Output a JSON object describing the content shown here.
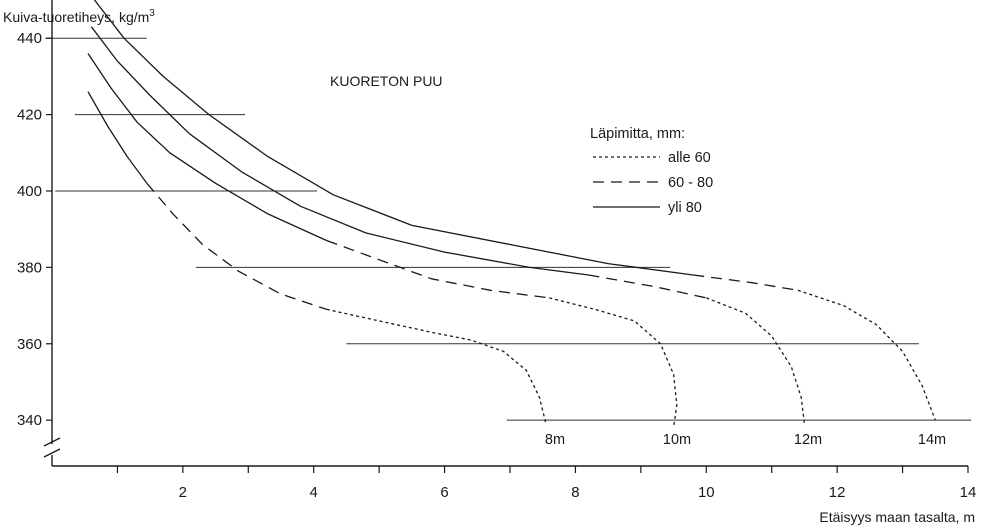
{
  "chart_data": {
    "type": "line",
    "title": "KUORETON PUU",
    "ylabel": "Kuiva-tuoretiheys, kg/m",
    "ylabel_sup": "3",
    "xlabel": "Etäisyys maan tasalta, m",
    "xlim": [
      0,
      14
    ],
    "ylim": [
      328,
      450
    ],
    "y_axis_break": true,
    "grid": false,
    "x_ticks": [
      2,
      4,
      6,
      8,
      10,
      12,
      14
    ],
    "y_ticks": [
      340,
      360,
      380,
      400,
      420,
      440
    ],
    "x_tick_labels": [
      "2",
      "4",
      "6",
      "8",
      "10",
      "12",
      "14"
    ],
    "y_tick_labels": [
      "340",
      "360",
      "380",
      "400",
      "420",
      "440"
    ],
    "legend": {
      "title": "Läpimitta, mm:",
      "placement": "right",
      "entries": [
        {
          "label": "alle 60",
          "style": "dotted"
        },
        {
          "label": "60 - 80",
          "style": "dashed"
        },
        {
          "label": "yli 80",
          "style": "solid"
        }
      ]
    },
    "reference_lines": [
      {
        "y": 440,
        "x": [
          -0.1,
          1.45
        ]
      },
      {
        "y": 420,
        "x": [
          0.35,
          2.95
        ]
      },
      {
        "y": 400,
        "x": [
          0.05,
          4.05
        ]
      },
      {
        "y": 380,
        "x": [
          2.2,
          9.45
        ]
      },
      {
        "y": 360,
        "x": [
          4.5,
          13.25
        ]
      },
      {
        "y": 340,
        "x": [
          6.95,
          14.05
        ]
      }
    ],
    "series": [
      {
        "label": "8m",
        "segments": [
          {
            "style": "solid",
            "points": [
              [
                0.55,
                426
              ],
              [
                0.85,
                417
              ],
              [
                1.15,
                409
              ],
              [
                1.45,
                402
              ]
            ]
          },
          {
            "style": "dashed",
            "points": [
              [
                1.45,
                402
              ],
              [
                1.85,
                394
              ],
              [
                2.3,
                386
              ],
              [
                2.85,
                379
              ],
              [
                3.5,
                373
              ],
              [
                4.2,
                369
              ]
            ]
          },
          {
            "style": "dotted",
            "points": [
              [
                4.2,
                369
              ],
              [
                5.0,
                366
              ],
              [
                5.8,
                363
              ],
              [
                6.4,
                361
              ],
              [
                6.9,
                358
              ],
              [
                7.25,
                353
              ],
              [
                7.45,
                346
              ],
              [
                7.55,
                339
              ]
            ]
          }
        ]
      },
      {
        "label": "10m",
        "segments": [
          {
            "style": "solid",
            "points": [
              [
                0.55,
                436
              ],
              [
                0.9,
                427
              ],
              [
                1.3,
                418
              ],
              [
                1.8,
                410
              ],
              [
                2.5,
                402
              ],
              [
                3.3,
                394
              ],
              [
                4.2,
                387
              ]
            ]
          },
          {
            "style": "dashed",
            "points": [
              [
                4.2,
                387
              ],
              [
                5.0,
                382
              ],
              [
                5.8,
                377
              ],
              [
                6.7,
                374
              ],
              [
                7.6,
                372
              ]
            ]
          },
          {
            "style": "dotted",
            "points": [
              [
                7.6,
                372
              ],
              [
                8.3,
                369
              ],
              [
                8.9,
                366
              ],
              [
                9.3,
                360
              ],
              [
                9.5,
                352
              ],
              [
                9.55,
                344
              ],
              [
                9.5,
                338
              ]
            ]
          }
        ]
      },
      {
        "label": "12m",
        "segments": [
          {
            "style": "solid",
            "points": [
              [
                0.6,
                443
              ],
              [
                1.0,
                434
              ],
              [
                1.5,
                425
              ],
              [
                2.1,
                415
              ],
              [
                2.9,
                405
              ],
              [
                3.8,
                396
              ],
              [
                4.8,
                389
              ],
              [
                6.0,
                384
              ],
              [
                7.3,
                380
              ],
              [
                8.2,
                378
              ]
            ]
          },
          {
            "style": "dashed",
            "points": [
              [
                8.2,
                378
              ],
              [
                9.2,
                375
              ],
              [
                10.0,
                372
              ]
            ]
          },
          {
            "style": "dotted",
            "points": [
              [
                10.0,
                372
              ],
              [
                10.6,
                368
              ],
              [
                11.0,
                362
              ],
              [
                11.3,
                354
              ],
              [
                11.45,
                346
              ],
              [
                11.5,
                339
              ]
            ]
          }
        ]
      },
      {
        "label": "14m",
        "segments": [
          {
            "style": "solid",
            "points": [
              [
                0.65,
                450
              ],
              [
                1.1,
                440
              ],
              [
                1.7,
                430
              ],
              [
                2.4,
                420
              ],
              [
                3.3,
                409
              ],
              [
                4.3,
                399
              ],
              [
                5.5,
                391
              ],
              [
                7.0,
                386
              ],
              [
                8.5,
                381
              ],
              [
                9.8,
                378
              ]
            ]
          },
          {
            "style": "dashed",
            "points": [
              [
                9.8,
                378
              ],
              [
                10.7,
                376
              ],
              [
                11.4,
                374
              ]
            ]
          },
          {
            "style": "dotted",
            "points": [
              [
                11.4,
                374
              ],
              [
                12.1,
                370
              ],
              [
                12.6,
                365
              ],
              [
                13.0,
                358
              ],
              [
                13.3,
                349
              ],
              [
                13.5,
                340
              ]
            ]
          }
        ]
      }
    ]
  }
}
